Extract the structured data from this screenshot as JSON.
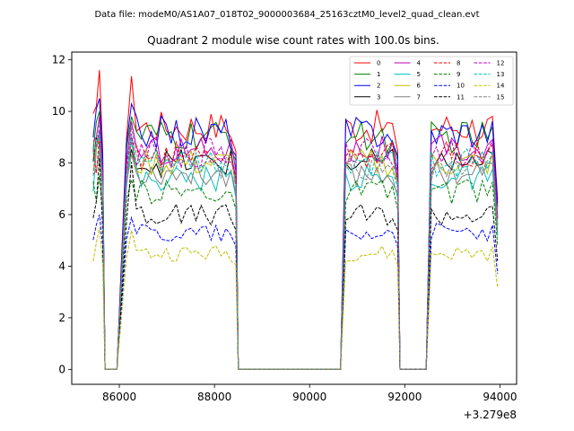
{
  "suptitle": "Data file: modeM0/AS1A07_018T02_9000003684_25163cztM0_level2_quad_clean.evt",
  "chart_data": {
    "type": "line",
    "title": "Quadrant 2 module wise count rates with 100.0s bins.",
    "xlabel": "",
    "ylabel": "",
    "offset_text": "+3.279e8",
    "xlim": [
      85000,
      94350
    ],
    "ylim": [
      -0.58,
      12.3
    ],
    "xticks": [
      86000,
      88000,
      90000,
      92000,
      94000
    ],
    "xtick_labels": [
      "86000",
      "88000",
      "90000",
      "92000",
      "94000"
    ],
    "yticks": [
      0,
      2,
      4,
      6,
      8,
      10,
      12
    ],
    "ytick_labels": [
      "0",
      "2",
      "4",
      "6",
      "8",
      "10",
      "12"
    ],
    "grid": false,
    "legend_position": "top-right",
    "legend_columns": 4,
    "segments": [
      [
        85450,
        85650,
        4
      ],
      [
        86150,
        88450,
        23
      ],
      [
        90650,
        91850,
        12
      ],
      [
        92450,
        93950,
        15
      ]
    ],
    "gaps": [
      [
        85750,
        85950
      ],
      [
        88550,
        90550
      ],
      [
        91950,
        92350
      ]
    ],
    "series": [
      {
        "name": "0",
        "color": "#ff0000",
        "dash": "solid",
        "level": 9.4,
        "edge": [
          10.2,
          11.6
        ]
      },
      {
        "name": "1",
        "color": "#008000",
        "dash": "solid",
        "level": 9.0,
        "edge": [
          9.6,
          10.0
        ]
      },
      {
        "name": "2",
        "color": "#0000ff",
        "dash": "solid",
        "level": 9.2,
        "edge": [
          10.1,
          10.5
        ]
      },
      {
        "name": "3",
        "color": "#000000",
        "dash": "solid",
        "level": 8.0,
        "edge": [
          9.0,
          8.7
        ]
      },
      {
        "name": "4",
        "color": "#bf00bf",
        "dash": "solid",
        "level": 8.5,
        "edge": [
          9.0,
          9.8
        ]
      },
      {
        "name": "5",
        "color": "#00bfbf",
        "dash": "solid",
        "level": 7.4,
        "edge": [
          8.5,
          9.2
        ]
      },
      {
        "name": "6",
        "color": "#bfbf00",
        "dash": "solid",
        "level": 8.0,
        "edge": [
          8.6,
          9.0
        ]
      },
      {
        "name": "7",
        "color": "#808080",
        "dash": "solid",
        "level": 7.6,
        "edge": [
          7.7,
          8.5
        ]
      },
      {
        "name": "8",
        "color": "#ff0000",
        "dash": "dashed",
        "level": 8.3,
        "edge": [
          7.6,
          9.0
        ]
      },
      {
        "name": "9",
        "color": "#008000",
        "dash": "dashed",
        "level": 6.9,
        "edge": [
          6.5,
          7.5
        ]
      },
      {
        "name": "10",
        "color": "#0000ff",
        "dash": "dashed",
        "level": 5.3,
        "edge": [
          5.6,
          6.0
        ]
      },
      {
        "name": "11",
        "color": "#000000",
        "dash": "dashed",
        "level": 6.0,
        "edge": [
          6.5,
          8.2
        ]
      },
      {
        "name": "12",
        "color": "#bf00bf",
        "dash": "dashed",
        "level": 8.4,
        "edge": [
          8.6,
          9.3
        ]
      },
      {
        "name": "13",
        "color": "#00bfbf",
        "dash": "dashed",
        "level": 8.0,
        "edge": [
          8.8,
          9.0
        ]
      },
      {
        "name": "14",
        "color": "#bfbf00",
        "dash": "dashed",
        "level": 4.5,
        "edge": [
          4.9,
          5.5
        ]
      },
      {
        "name": "15",
        "color": "#808080",
        "dash": "dashed",
        "level": 7.8,
        "edge": [
          8.9,
          9.6
        ]
      }
    ]
  }
}
